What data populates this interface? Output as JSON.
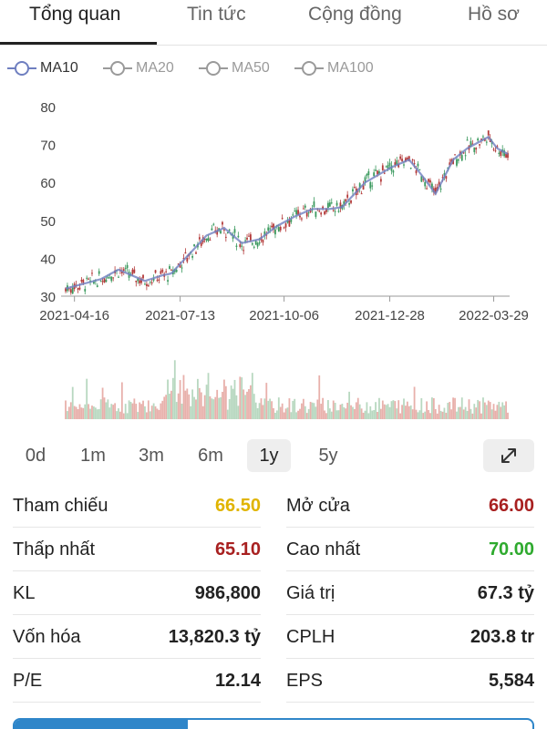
{
  "tabs": [
    "Tổng quan",
    "Tin tức",
    "Cộng đồng",
    "Hồ sơ"
  ],
  "active_tab": 0,
  "ma_legend": [
    {
      "label": "MA10",
      "active": true
    },
    {
      "label": "MA20",
      "active": false
    },
    {
      "label": "MA50",
      "active": false
    },
    {
      "label": "MA100",
      "active": false
    }
  ],
  "colors": {
    "ma10": "#6f7fc0",
    "ma_inactive": "#9a9a9a",
    "up": "#3c9a5f",
    "down": "#b33a3a",
    "vol_up": "#b8d8c0",
    "vol_down": "#e8b0ab",
    "ref_yellow": "#e0b400",
    "red": "#a82020",
    "green": "#2eaa2e",
    "axis": "#9a9a9a"
  },
  "chart_data": {
    "type": "line",
    "y_ticks": [
      30,
      40,
      50,
      60,
      70,
      80
    ],
    "ylim": [
      30,
      80
    ],
    "x_ticks": [
      "2021-04-16",
      "2021-07-13",
      "2021-10-06",
      "2021-12-28",
      "2022-03-29"
    ],
    "x_tick_index": [
      5,
      65,
      124,
      184,
      243
    ],
    "ma10_anchor_index": [
      0,
      20,
      30,
      45,
      55,
      60,
      80,
      90,
      100,
      110,
      120,
      130,
      140,
      150,
      157,
      170,
      185,
      195,
      202,
      210,
      220,
      228,
      236,
      240,
      245,
      251
    ],
    "ma10_anchor_value": [
      32,
      34.5,
      37,
      34,
      35.5,
      36,
      46,
      48,
      44,
      45,
      48.5,
      51,
      53,
      53,
      53.5,
      60,
      64,
      66,
      62,
      57,
      66,
      69,
      71,
      72,
      69,
      67.5
    ],
    "last_close": 66.5
  },
  "range_buttons": [
    "0d",
    "1m",
    "3m",
    "6m",
    "1y",
    "5y"
  ],
  "active_range": "1y",
  "stats": [
    {
      "label": "Tham chiếu",
      "value": "66.50",
      "color": "#e0b400"
    },
    {
      "label": "Mở cửa",
      "value": "66.00",
      "color": "#a82020"
    },
    {
      "label": "Thấp nhất",
      "value": "65.10",
      "color": "#a82020"
    },
    {
      "label": "Cao nhất",
      "value": "70.00",
      "color": "#2eaa2e"
    },
    {
      "label": "KL",
      "value": "986,800",
      "color": "#222222"
    },
    {
      "label": "Giá trị",
      "value": "67.3 tỷ",
      "color": "#222222"
    },
    {
      "label": "Vốn hóa",
      "value": "13,820.3 tỷ",
      "color": "#222222"
    },
    {
      "label": "CPLH",
      "value": "203.8 tr",
      "color": "#222222"
    },
    {
      "label": "P/E",
      "value": "12.14",
      "color": "#222222"
    },
    {
      "label": "EPS",
      "value": "5,584",
      "color": "#222222"
    }
  ]
}
